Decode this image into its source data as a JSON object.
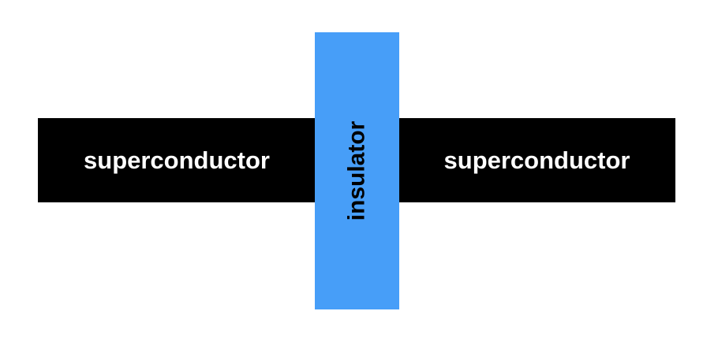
{
  "diagram": {
    "left_block": {
      "label": "superconductor",
      "color": "#000000",
      "text_color": "#ffffff"
    },
    "right_block": {
      "label": "superconductor",
      "color": "#000000",
      "text_color": "#ffffff"
    },
    "barrier": {
      "label": "insulator",
      "color": "#479ef8",
      "text_color": "#000000"
    }
  }
}
